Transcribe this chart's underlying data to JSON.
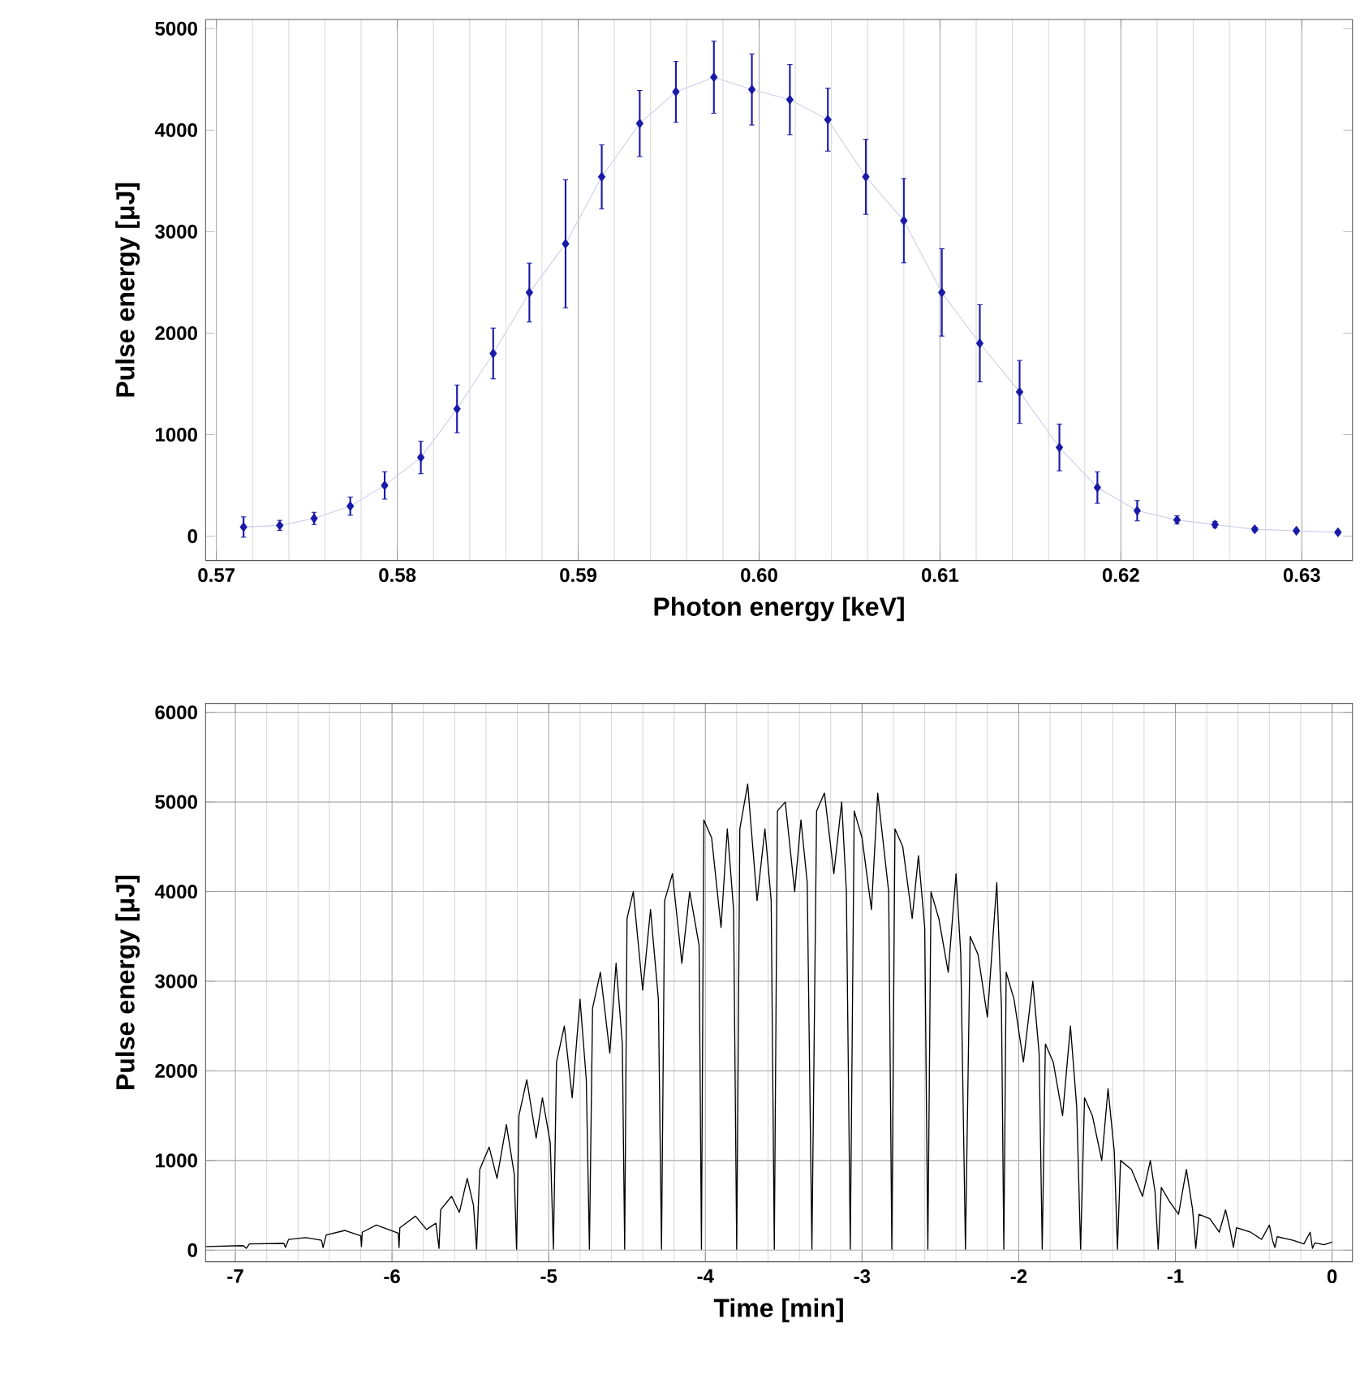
{
  "chart_data": [
    {
      "type": "line",
      "xlabel": "Photon energy [keV]",
      "ylabel": "Pulse energy [μJ]",
      "xlim": [
        0.5694,
        0.6328
      ],
      "ylim": [
        -240,
        5090
      ],
      "xticks": [
        0.57,
        0.58,
        0.59,
        {
          "value": 0.6,
          "label": "0.60"
        },
        0.61,
        0.62,
        0.63
      ],
      "yticks": [
        0,
        1000,
        2000,
        3000,
        4000,
        5000
      ],
      "grid": "x",
      "marker": "diamond",
      "series": [
        {
          "color": "#1a1aa8",
          "x": [
            0.5715,
            0.5735,
            0.5754,
            0.5774,
            0.5793,
            0.5813,
            0.5833,
            0.5853,
            0.5873,
            0.5893,
            0.5913,
            0.5934,
            0.5954,
            0.5975,
            0.5996,
            0.6017,
            0.6038,
            0.6059,
            0.608,
            0.6101,
            0.6122,
            0.6144,
            0.6166,
            0.6187,
            0.6209,
            0.6231,
            0.6252,
            0.6274,
            0.6297,
            0.632
          ],
          "values": [
            90,
            106,
            175,
            296,
            500,
            775,
            1254,
            1800,
            2400,
            2880,
            3540,
            4065,
            4377,
            4521,
            4400,
            4300,
            4103,
            3540,
            3108,
            2401,
            1900,
            1421,
            874,
            479,
            251,
            160,
            114,
            68,
            53,
            38
          ],
          "errors": [
            100,
            50,
            60,
            90,
            135,
            160,
            235,
            250,
            290,
            630,
            315,
            325,
            300,
            355,
            350,
            345,
            310,
            370,
            415,
            430,
            380,
            310,
            230,
            155,
            100,
            40,
            30,
            20,
            15,
            15
          ]
        }
      ]
    },
    {
      "type": "line",
      "xlabel": "Time [min]",
      "ylabel": "Pulse energy [μJ]",
      "xlim": [
        -7.19,
        0.13
      ],
      "ylim": [
        -130,
        6100
      ],
      "xticks": [
        -7,
        -6,
        -5,
        -4,
        -3,
        -2,
        -1,
        0
      ],
      "yticks": [
        0,
        1000,
        2000,
        3000,
        4000,
        5000,
        6000
      ],
      "grid": true,
      "series": [
        {
          "color": "#000000",
          "x": [
            -7.19,
            -6.95,
            -6.93,
            -6.91,
            -6.69,
            -6.68,
            -6.66,
            -6.55,
            -6.45,
            -6.44,
            -6.42,
            -6.3,
            -6.2,
            -6.195,
            -6.19,
            -6.1,
            -5.96,
            -5.955,
            -5.95,
            -5.85,
            -5.78,
            -5.72,
            -5.7,
            -5.69,
            -5.62,
            -5.57,
            -5.52,
            -5.48,
            -5.46,
            -5.44,
            -5.38,
            -5.33,
            -5.27,
            -5.22,
            -5.205,
            -5.19,
            -5.14,
            -5.08,
            -5.04,
            -4.99,
            -4.97,
            -4.95,
            -4.9,
            -4.85,
            -4.8,
            -4.76,
            -4.74,
            -4.72,
            -4.67,
            -4.61,
            -4.57,
            -4.53,
            -4.515,
            -4.5,
            -4.46,
            -4.4,
            -4.35,
            -4.3,
            -4.28,
            -4.26,
            -4.21,
            -4.15,
            -4.1,
            -4.04,
            -4.025,
            -4.01,
            -3.96,
            -3.9,
            -3.86,
            -3.82,
            -3.8,
            -3.78,
            -3.73,
            -3.67,
            -3.62,
            -3.58,
            -3.56,
            -3.54,
            -3.49,
            -3.43,
            -3.39,
            -3.35,
            -3.32,
            -3.29,
            -3.24,
            -3.18,
            -3.13,
            -3.1,
            -3.075,
            -3.05,
            -3.0,
            -2.94,
            -2.9,
            -2.83,
            -2.81,
            -2.79,
            -2.74,
            -2.68,
            -2.64,
            -2.6,
            -2.58,
            -2.56,
            -2.51,
            -2.45,
            -2.4,
            -2.37,
            -2.34,
            -2.31,
            -2.26,
            -2.2,
            -2.14,
            -2.11,
            -2.095,
            -2.08,
            -2.03,
            -1.97,
            -1.91,
            -1.87,
            -1.85,
            -1.83,
            -1.78,
            -1.72,
            -1.67,
            -1.63,
            -1.605,
            -1.58,
            -1.53,
            -1.47,
            -1.43,
            -1.39,
            -1.37,
            -1.35,
            -1.28,
            -1.21,
            -1.16,
            -1.13,
            -1.11,
            -1.09,
            -1.04,
            -0.98,
            -0.93,
            -0.89,
            -0.87,
            -0.85,
            -0.78,
            -0.72,
            -0.68,
            -0.65,
            -0.63,
            -0.61,
            -0.52,
            -0.45,
            -0.4,
            -0.38,
            -0.365,
            -0.35,
            -0.25,
            -0.18,
            -0.14,
            -0.125,
            -0.11,
            -0.05,
            0
          ],
          "values": [
            40,
            50,
            20,
            70,
            75,
            30,
            120,
            140,
            110,
            30,
            170,
            220,
            160,
            40,
            200,
            280,
            190,
            30,
            250,
            380,
            230,
            300,
            20,
            450,
            600,
            420,
            800,
            500,
            10,
            900,
            1150,
            800,
            1400,
            850,
            10,
            1500,
            1900,
            1250,
            1700,
            1200,
            10,
            2100,
            2500,
            1700,
            2800,
            1900,
            10,
            2700,
            3100,
            2200,
            3200,
            2300,
            10,
            3700,
            4000,
            2900,
            3800,
            2800,
            10,
            3900,
            4200,
            3200,
            4000,
            3400,
            10,
            4800,
            4600,
            3600,
            4700,
            3800,
            10,
            4700,
            5200,
            3900,
            4700,
            3900,
            10,
            4900,
            5000,
            4000,
            4800,
            4100,
            10,
            4900,
            5100,
            4200,
            5000,
            4000,
            10,
            4900,
            4600,
            3800,
            5100,
            4000,
            10,
            4700,
            4500,
            3700,
            4400,
            3600,
            10,
            4000,
            3700,
            3100,
            4200,
            3300,
            10,
            3500,
            3300,
            2600,
            4100,
            2700,
            10,
            3100,
            2800,
            2100,
            3000,
            2200,
            10,
            2300,
            2100,
            1500,
            2500,
            1600,
            10,
            1700,
            1500,
            1000,
            1800,
            1100,
            10,
            1000,
            900,
            600,
            1000,
            650,
            10,
            700,
            550,
            400,
            900,
            450,
            20,
            400,
            350,
            200,
            450,
            220,
            30,
            250,
            200,
            120,
            280,
            110,
            30,
            150,
            110,
            70,
            200,
            20,
            80,
            60,
            90
          ]
        }
      ]
    }
  ]
}
